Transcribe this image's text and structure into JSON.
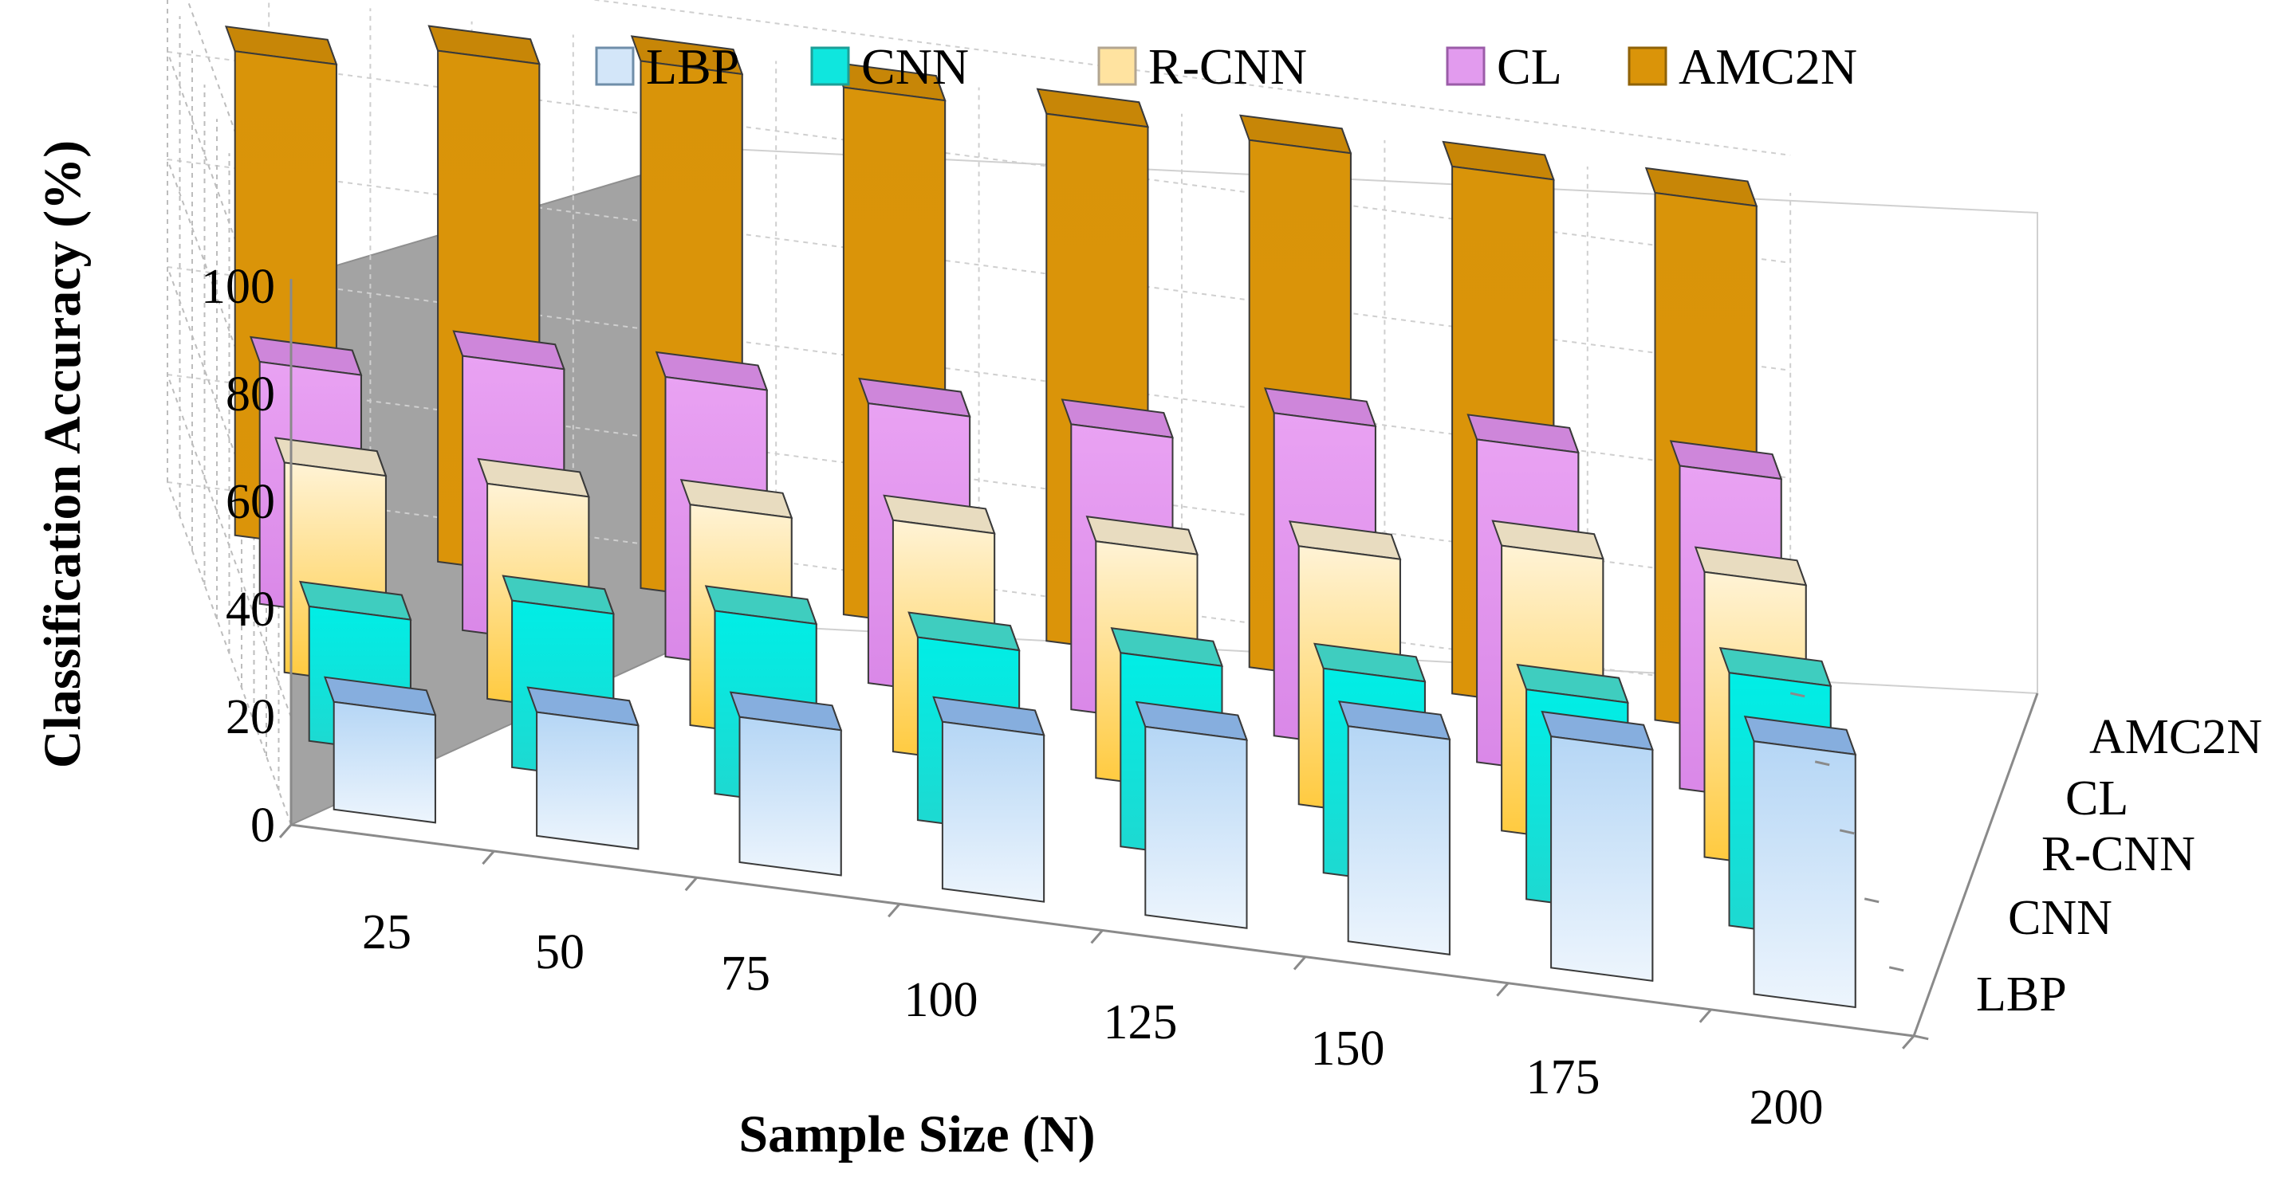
{
  "chart_data": {
    "type": "bar",
    "subtype": "3d-column",
    "title": "",
    "ylabel": "Classification Accuracy (%)",
    "xlabel": "Sample Size (N)",
    "ylim": [
      0,
      100
    ],
    "yticks": [
      "0",
      "20",
      "40",
      "60",
      "80",
      "100"
    ],
    "categories": [
      "25",
      "50",
      "75",
      "100",
      "125",
      "150",
      "175",
      "200"
    ],
    "depth_labels": [
      "LBP",
      "CNN",
      "R-CNN",
      "CL",
      "AMC2N"
    ],
    "legend_position": "top",
    "grid": true,
    "series": [
      {
        "name": "LBP",
        "values": [
          20,
          23,
          27,
          31,
          35,
          40,
          43,
          47
        ]
      },
      {
        "name": "CNN",
        "values": [
          25,
          31,
          34,
          34,
          36,
          38,
          39,
          47
        ]
      },
      {
        "name": "R-CNN",
        "values": [
          39,
          40,
          41,
          43,
          44,
          48,
          53,
          53
        ]
      },
      {
        "name": "CL",
        "values": [
          45,
          51,
          52,
          52,
          53,
          60,
          60,
          60
        ]
      },
      {
        "name": "AMC2N",
        "values": [
          90,
          95,
          98,
          98,
          98,
          98,
          98,
          98
        ]
      }
    ],
    "colors": {
      "LBP": {
        "front_top": "#b5d6f5",
        "front_bottom": "#edf5fd",
        "side": "#6f8ea9",
        "top": "#86aede"
      },
      "CNN": {
        "front_top": "#00eee6",
        "front_bottom": "#1fd8d0",
        "side": "#1d9e97",
        "top": "#3fcdbf"
      },
      "R-CNN": {
        "front_top": "#fff3d6",
        "front_bottom": "#ffc93a",
        "side": "#b2a591",
        "top": "#e8dcc0"
      },
      "CL": {
        "front_top": "#e9a2f3",
        "front_bottom": "#d987e7",
        "side": "#9b5ca8",
        "top": "#ce86da"
      },
      "AMC2N": {
        "front_top": "#d99409",
        "front_bottom": "#db9409",
        "side": "#8f6207",
        "top": "#c78607"
      }
    }
  }
}
